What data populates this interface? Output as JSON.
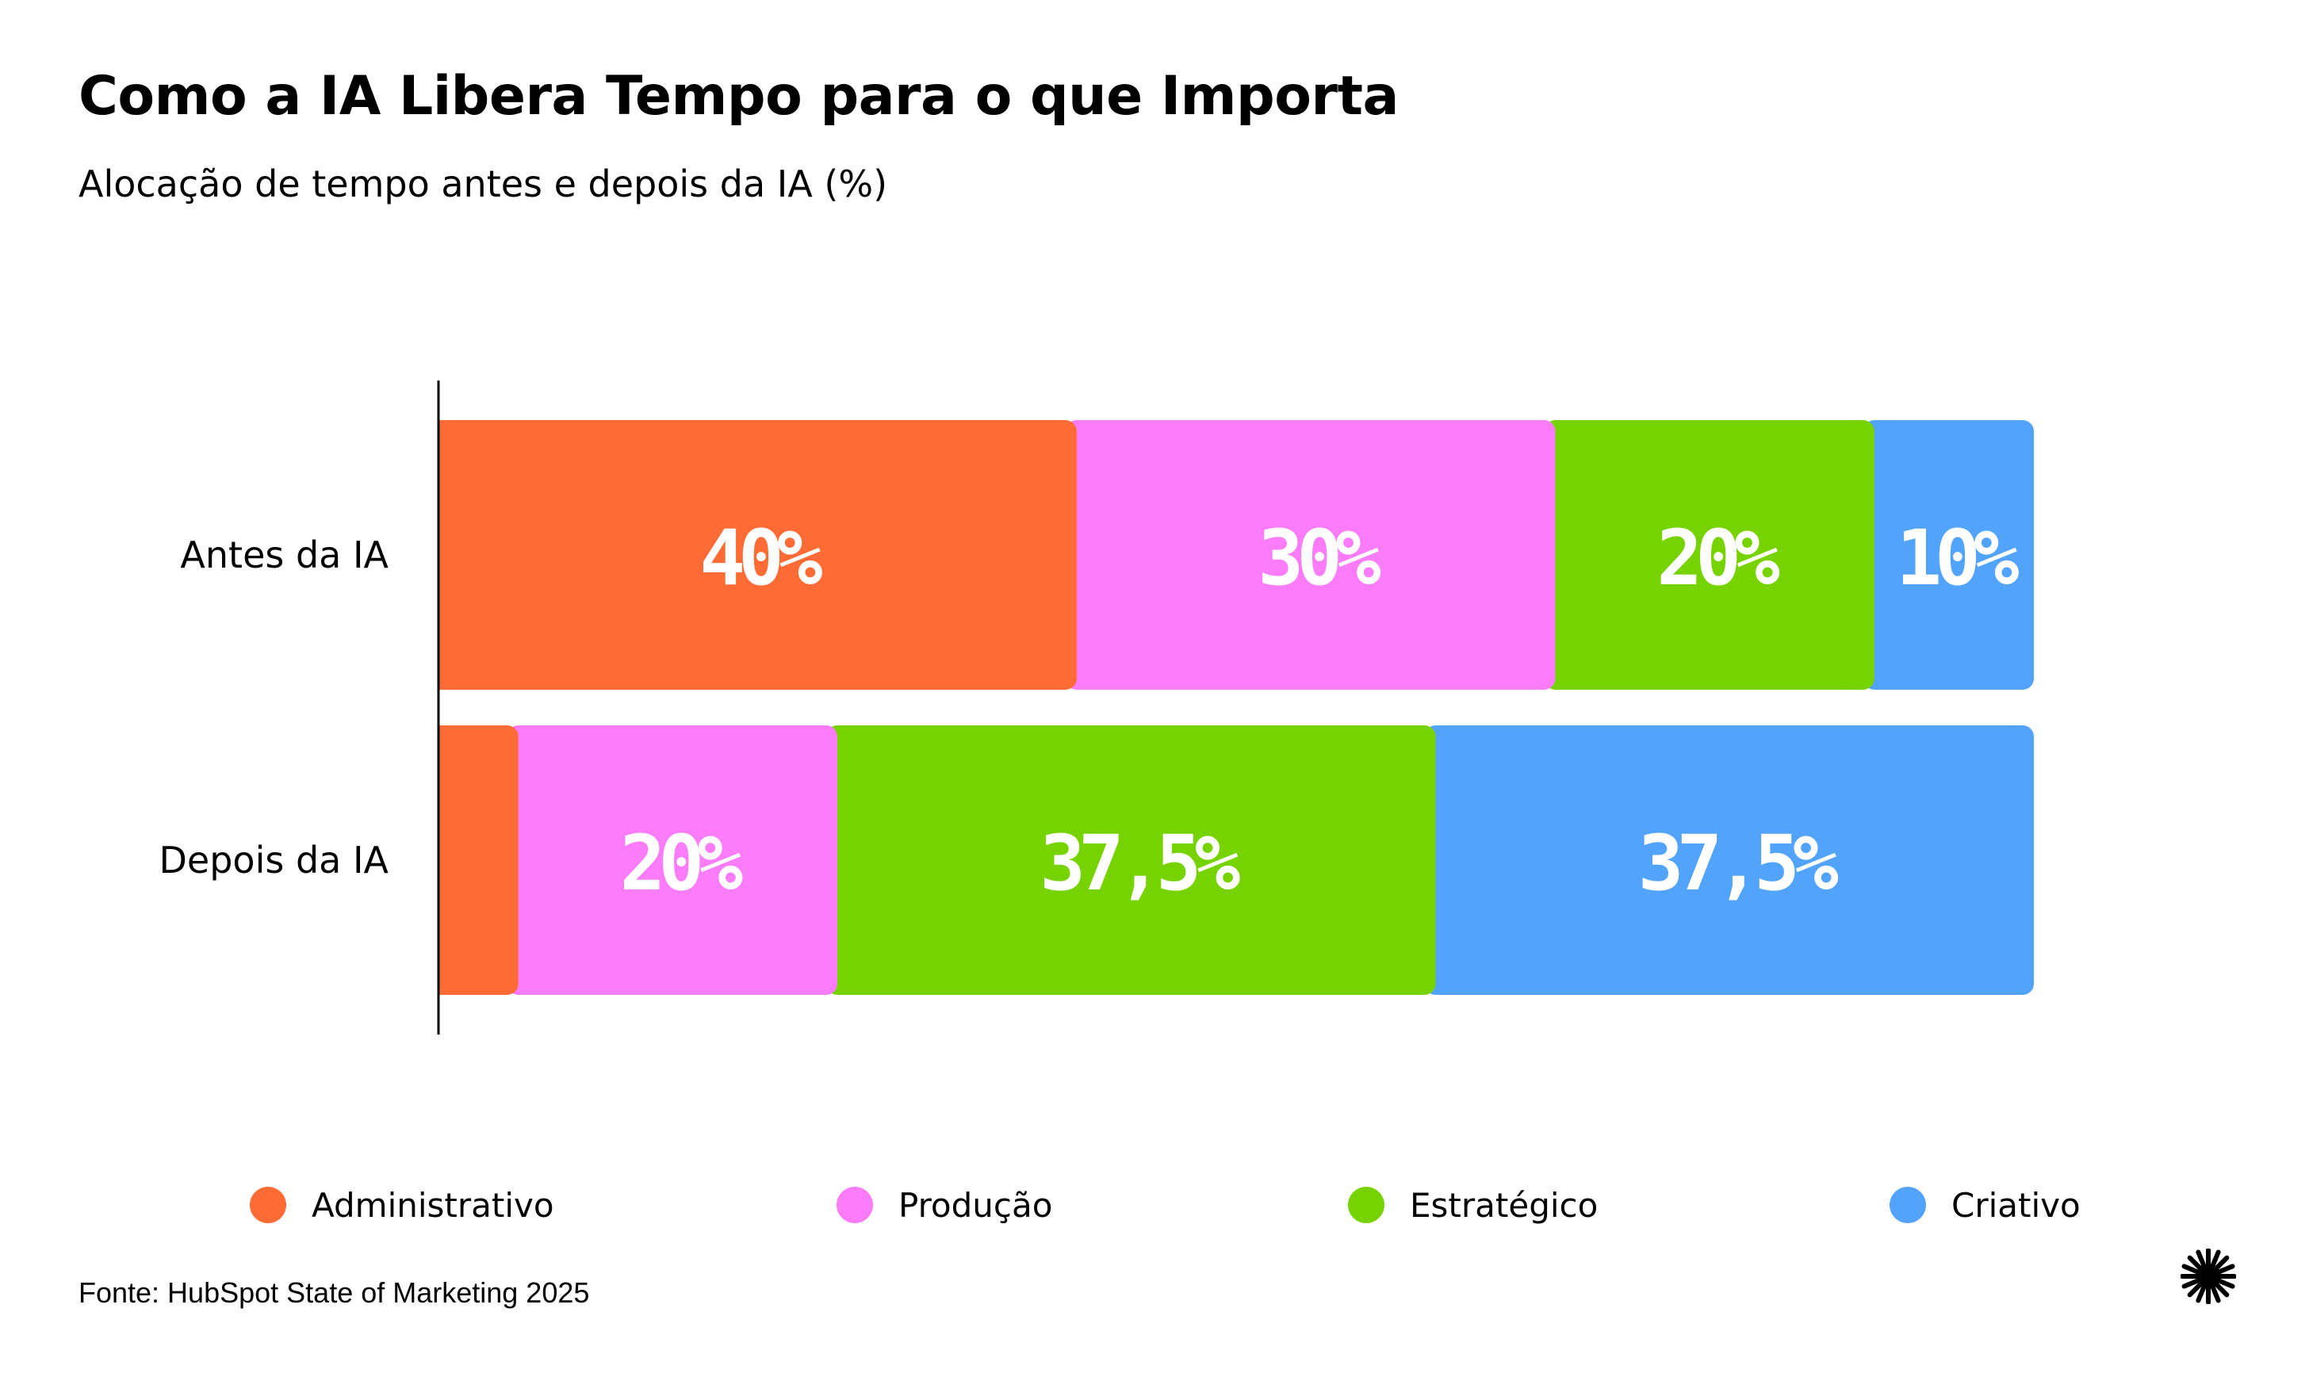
{
  "title": "Como a IA Libera Tempo para o que Importa",
  "subtitle": "Alocação de tempo antes e depois da IA (%)",
  "source": "Fonte: HubSpot State of Marketing 2025",
  "logo_icon": "asterisk-burst-icon",
  "colors": {
    "Administrativo": "#FF6B35",
    "Produção": "#FA7CF8",
    "Estratégico": "#77D300",
    "Criativo": "#52A3FC",
    "axis": "#000000",
    "value_text": "#FFFFFF"
  },
  "chart_data": {
    "type": "bar",
    "orientation": "horizontal",
    "stacked": true,
    "title": "Como a IA Libera Tempo para o que Importa",
    "subtitle": "Alocação de tempo antes e depois da IA (%)",
    "categories": [
      "Antes da IA",
      "Depois da IA"
    ],
    "series": [
      {
        "name": "Administrativo",
        "values": [
          40,
          5
        ],
        "labels": [
          "40%",
          ""
        ]
      },
      {
        "name": "Produção",
        "values": [
          30,
          20
        ],
        "labels": [
          "30%",
          "20%"
        ]
      },
      {
        "name": "Estratégico",
        "values": [
          20,
          37.5
        ],
        "labels": [
          "20%",
          "37,5%"
        ]
      },
      {
        "name": "Criativo",
        "values": [
          10,
          37.5
        ],
        "labels": [
          "10%",
          "37,5%"
        ]
      }
    ],
    "xlim": [
      0,
      100
    ],
    "xlabel": "",
    "ylabel": "",
    "grid": false,
    "legend_position": "bottom"
  }
}
